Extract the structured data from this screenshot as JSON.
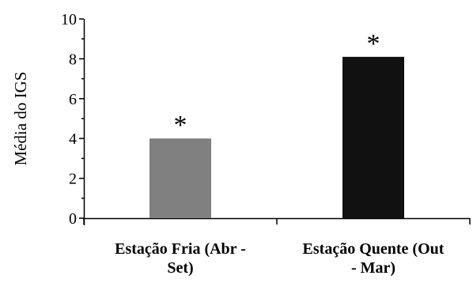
{
  "chart_data": {
    "type": "bar",
    "ylabel": "Média do IGS",
    "xlabel": "",
    "ylim": [
      0,
      10
    ],
    "y_ticks": [
      "0",
      "2",
      "4",
      "6",
      "8",
      "10"
    ],
    "grid": false,
    "categories": [
      {
        "label_lines": [
          "Estação Fria (Abr -",
          "Set)"
        ]
      },
      {
        "label_lines": [
          "Estação Quente (Out",
          "- Mar)"
        ]
      }
    ],
    "values": [
      4.0,
      8.1
    ],
    "annotations": [
      "*",
      "*"
    ],
    "colors": [
      "#808080",
      "#111111"
    ]
  }
}
